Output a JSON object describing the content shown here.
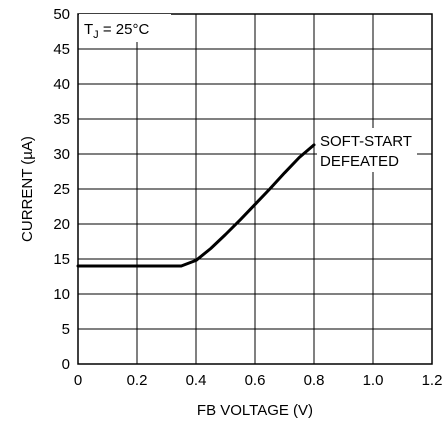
{
  "chart_data": {
    "type": "line",
    "xlabel": "FB VOLTAGE (V)",
    "ylabel": "CURRENT (µA)",
    "xlim": [
      0,
      1.2
    ],
    "ylim": [
      0,
      50
    ],
    "x_ticks": [
      "0",
      "0.2",
      "0.4",
      "0.6",
      "0.8",
      "1.0",
      "1.2"
    ],
    "y_ticks": [
      "0",
      "5",
      "10",
      "15",
      "20",
      "25",
      "30",
      "35",
      "40",
      "45",
      "50"
    ],
    "x_tick_values": [
      0,
      0.2,
      0.4,
      0.6,
      0.8,
      1.0,
      1.2
    ],
    "y_tick_values": [
      0,
      5,
      10,
      15,
      20,
      25,
      30,
      35,
      40,
      45,
      50
    ],
    "grid": true,
    "condition_label": {
      "main": "T",
      "sub": "J",
      "rest": " = 25°C"
    },
    "series": [
      {
        "x": [
          0,
          0.1,
          0.2,
          0.3,
          0.35,
          0.4,
          0.45,
          0.5,
          0.55,
          0.6,
          0.65,
          0.7,
          0.75,
          0.8
        ],
        "y": [
          14,
          14,
          14,
          14,
          14,
          14.8,
          16.5,
          18.5,
          20.6,
          22.8,
          25.0,
          27.3,
          29.5,
          31.3
        ]
      }
    ],
    "annotation": [
      "SOFT-START",
      "DEFEATED"
    ]
  }
}
